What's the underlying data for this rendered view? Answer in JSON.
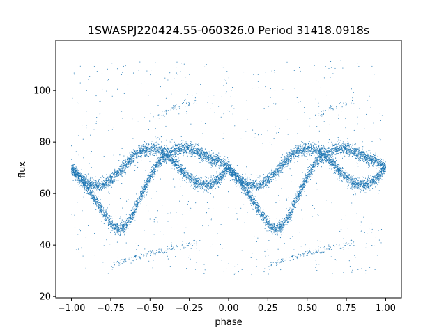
{
  "chart_data": {
    "type": "scatter",
    "title": "1SWASPJ220424.55-060326.0 Period 31418.0918s",
    "xlabel": "phase",
    "ylabel": "flux",
    "xlim": [
      -1.1,
      1.1
    ],
    "ylim": [
      19.5,
      119.5
    ],
    "xticks": [
      -1.0,
      -0.75,
      -0.5,
      -0.25,
      0.0,
      0.25,
      0.5,
      0.75,
      1.0
    ],
    "xtick_labels": [
      "−1.00",
      "−0.75",
      "−0.50",
      "−0.25",
      "0.00",
      "0.25",
      "0.50",
      "0.75",
      "1.00"
    ],
    "yticks": [
      20,
      40,
      60,
      80,
      100
    ],
    "ytick_labels": [
      "20",
      "40",
      "60",
      "80",
      "100"
    ],
    "grid": false,
    "marker_color": "#1f77b4",
    "series": [
      {
        "phase": [
          0.0,
          0.05,
          0.1,
          0.15,
          0.2,
          0.25,
          0.3,
          0.35,
          0.4,
          0.45,
          0.5,
          0.55,
          0.6,
          0.65,
          0.7,
          0.75,
          0.8,
          0.85,
          0.9,
          0.95,
          1.0
        ],
        "flux": [
          70,
          66.5,
          64,
          63.2,
          63.5,
          65,
          68,
          71.5,
          74.8,
          76.8,
          77.5,
          77,
          75.5,
          72.8,
          69,
          66,
          64,
          63.2,
          63.8,
          66.2,
          70
        ]
      },
      {
        "phase": [
          0.0,
          0.05,
          0.1,
          0.15,
          0.2,
          0.25,
          0.3,
          0.35,
          0.4,
          0.45,
          0.5,
          0.55,
          0.6,
          0.65,
          0.7,
          0.75,
          0.8,
          0.85,
          0.9,
          0.95,
          1.0
        ],
        "flux": [
          70,
          66,
          62,
          58,
          53,
          48.5,
          46,
          47.5,
          53,
          60,
          66.5,
          71.5,
          74.8,
          76.8,
          77.5,
          77.3,
          76.2,
          74.8,
          73.5,
          72.2,
          70
        ]
      },
      {
        "phase": [
          0.25,
          0.3,
          0.35,
          0.4,
          0.45,
          0.5,
          0.55,
          0.6,
          0.65,
          0.7,
          0.75,
          0.8
        ],
        "flux": [
          31.5,
          33,
          34,
          35,
          35.8,
          36.5,
          37.3,
          38,
          38.7,
          39.5,
          40.2,
          41
        ]
      },
      {
        "phase": [
          0.55,
          0.6,
          0.65,
          0.7,
          0.75,
          0.8
        ],
        "flux": [
          90,
          91.5,
          93,
          94.2,
          95.2,
          96
        ]
      }
    ]
  }
}
